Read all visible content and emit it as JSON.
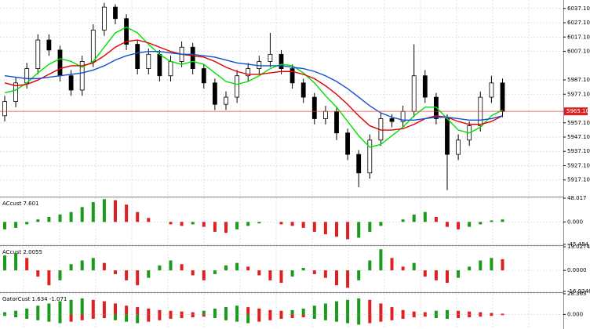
{
  "chart_data": [
    {
      "type": "candlestick",
      "open": [
        5962,
        5972,
        5985,
        5995,
        6015,
        6008,
        5990,
        5980,
        6000,
        6022,
        6038,
        6030,
        6012,
        5995,
        6005,
        5990,
        6000,
        6010,
        5995,
        5985,
        5970,
        5975,
        5990,
        5995,
        6000,
        6005,
        5995,
        5985,
        5975,
        5960,
        5965,
        5950,
        5935,
        5922,
        5945,
        5960,
        5958,
        5965,
        5990,
        5975,
        5960,
        5935,
        5945,
        5955,
        5975,
        5985
      ],
      "high": [
        5976,
        5989,
        5999,
        6019,
        6019,
        6011,
        5994,
        6004,
        6026,
        6041,
        6040,
        6033,
        6015,
        6009,
        6008,
        6004,
        6014,
        6013,
        5998,
        5988,
        5979,
        5994,
        5999,
        6004,
        6020,
        6008,
        5998,
        5988,
        5978,
        5969,
        5968,
        5953,
        5938,
        5949,
        5964,
        5963,
        5969,
        6012,
        5994,
        5978,
        5963,
        5949,
        5958,
        5979,
        5990,
        5988
      ],
      "low": [
        5958,
        5968,
        5981,
        5991,
        6004,
        5986,
        5976,
        5976,
        5996,
        6018,
        6026,
        6008,
        5991,
        5991,
        5986,
        5986,
        5996,
        5991,
        5981,
        5966,
        5966,
        5971,
        5986,
        5991,
        5996,
        5991,
        5981,
        5971,
        5956,
        5956,
        5945,
        5931,
        5912,
        5918,
        5941,
        5954,
        5954,
        5961,
        5971,
        5956,
        5910,
        5931,
        5941,
        5951,
        5971,
        5961
      ],
      "close": [
        5972,
        5985,
        5995,
        6015,
        6008,
        5990,
        5980,
        6000,
        6022,
        6038,
        6030,
        6012,
        5995,
        6005,
        5990,
        6000,
        6010,
        5995,
        5985,
        5970,
        5975,
        5990,
        5995,
        6000,
        6005,
        5995,
        5985,
        5975,
        5960,
        5965,
        5950,
        5935,
        5922,
        5945,
        5960,
        5958,
        5965,
        5990,
        5975,
        5960,
        5935,
        5945,
        5955,
        5975,
        5985,
        5965
      ],
      "series": [
        {
          "color": "#00e000",
          "values": [
            5978,
            5980,
            5985,
            5992,
            5998,
            6002,
            6000,
            5996,
            6000,
            6010,
            6020,
            6024,
            6020,
            6012,
            6005,
            6000,
            5998,
            6000,
            5998,
            5992,
            5986,
            5984,
            5986,
            5990,
            5995,
            5998,
            5997,
            5992,
            5985,
            5976,
            5968,
            5958,
            5948,
            5940,
            5942,
            5948,
            5954,
            5962,
            5968,
            5968,
            5960,
            5952,
            5950,
            5954,
            5962,
            5966
          ]
        },
        {
          "color": "#e00000",
          "values": [
            5985,
            5983,
            5984,
            5987,
            5991,
            5995,
            5997,
            5997,
            5999,
            6004,
            6010,
            6014,
            6015,
            6013,
            6010,
            6007,
            6005,
            6004,
            6003,
            6000,
            5996,
            5993,
            5991,
            5991,
            5992,
            5993,
            5993,
            5991,
            5988,
            5983,
            5977,
            5970,
            5962,
            5955,
            5952,
            5952,
            5953,
            5956,
            5960,
            5962,
            5961,
            5958,
            5956,
            5956,
            5958,
            5962
          ]
        },
        {
          "color": "#1050d0",
          "values": [
            5990,
            5989,
            5988,
            5988,
            5989,
            5990,
            5991,
            5992,
            5994,
            5997,
            6001,
            6004,
            6006,
            6007,
            6007,
            6006,
            6005,
            6005,
            6004,
            6003,
            6001,
            5999,
            5998,
            5997,
            5997,
            5997,
            5996,
            5995,
            5993,
            5990,
            5986,
            5981,
            5975,
            5969,
            5964,
            5961,
            5959,
            5959,
            5960,
            5961,
            5961,
            5960,
            5959,
            5959,
            5960,
            5962
          ]
        }
      ],
      "ylim": [
        5906,
        6043
      ],
      "yticks": [
        {
          "value": 6037.1,
          "label": "6037.10"
        },
        {
          "value": 6027.1,
          "label": "6027.10"
        },
        {
          "value": 6017.1,
          "label": "6017.10"
        },
        {
          "value": 6007.1,
          "label": "6007.10"
        },
        {
          "value": 5987.1,
          "label": "5987.10"
        },
        {
          "value": 5977.1,
          "label": "5977.10"
        },
        {
          "value": 5957.1,
          "label": "5957.10"
        },
        {
          "value": 5947.1,
          "label": "5947.10"
        },
        {
          "value": 5937.1,
          "label": "5937.10"
        },
        {
          "value": 5927.1,
          "label": "5927.10"
        },
        {
          "value": 5917.1,
          "label": "5917.10"
        }
      ],
      "current_price": {
        "value": 5965.1,
        "label": "5965.10"
      },
      "grid": true
    },
    {
      "type": "bar",
      "title": "ACcust 7.601",
      "values": [
        -15,
        -12,
        -5,
        5,
        10,
        15,
        20,
        30,
        40,
        46,
        44,
        35,
        20,
        8,
        0,
        -5,
        -8,
        -5,
        -10,
        -20,
        -22,
        -15,
        -8,
        -3,
        0,
        -5,
        -8,
        -12,
        -20,
        -25,
        -30,
        -35,
        -32,
        -20,
        -8,
        0,
        5,
        15,
        20,
        10,
        -10,
        -15,
        -10,
        -5,
        3,
        5
      ],
      "up_color": "#1a9a1a",
      "down_color": "#e02020",
      "ylim": [
        -45.484,
        48.017
      ],
      "yticks": [
        48.017,
        {
          "value": 0,
          "label": "0.000"
        },
        -45.484
      ],
      "grid": true
    },
    {
      "type": "bar",
      "title": "ACcust 2.0055",
      "values": [
        12,
        14,
        10,
        -5,
        -12,
        -8,
        5,
        8,
        10,
        6,
        -3,
        -8,
        -12,
        -6,
        4,
        8,
        5,
        -4,
        -8,
        -3,
        4,
        6,
        3,
        -4,
        -8,
        -10,
        -5,
        2,
        -3,
        -6,
        -12,
        -14,
        -8,
        8,
        17,
        10,
        3,
        6,
        -5,
        -8,
        -10,
        -6,
        3,
        8,
        10,
        9
      ],
      "up_color": "#1a9a1a",
      "down_color": "#e02020",
      "ylim": [
        -16.9246,
        19.0274
      ],
      "yticks": [
        19.0274,
        {
          "value": 0,
          "label": "0.0000"
        },
        -16.9246
      ],
      "grid": true
    },
    {
      "type": "gator",
      "title": "GatorCust 1.634 -1.071",
      "values": [
        3,
        5,
        8,
        12,
        15,
        18,
        20,
        22,
        20,
        18,
        15,
        12,
        10,
        8,
        6,
        5,
        4,
        3,
        5,
        8,
        10,
        12,
        10,
        8,
        6,
        5,
        6,
        8,
        12,
        15,
        18,
        20,
        22,
        20,
        15,
        10,
        6,
        4,
        3,
        5,
        6,
        5,
        4,
        3,
        2,
        1
      ],
      "values_lower": [
        -2,
        -4,
        -6,
        -8,
        -10,
        -12,
        -10,
        -8,
        -6,
        -5,
        -8,
        -10,
        -12,
        -10,
        -8,
        -6,
        -5,
        -4,
        -3,
        -5,
        -8,
        -10,
        -12,
        -10,
        -8,
        -6,
        -5,
        -4,
        -6,
        -8,
        -10,
        -12,
        -14,
        -12,
        -10,
        -8,
        -6,
        -4,
        -3,
        -5,
        -6,
        -5,
        -4,
        -3,
        -2,
        -1
      ],
      "up_color": "#1a9a1a",
      "down_color": "#e02020",
      "ylim": [
        -20,
        28.363
      ],
      "yticks": [
        28.363,
        {
          "value": 0,
          "label": "0.000"
        }
      ],
      "grid": true
    }
  ]
}
